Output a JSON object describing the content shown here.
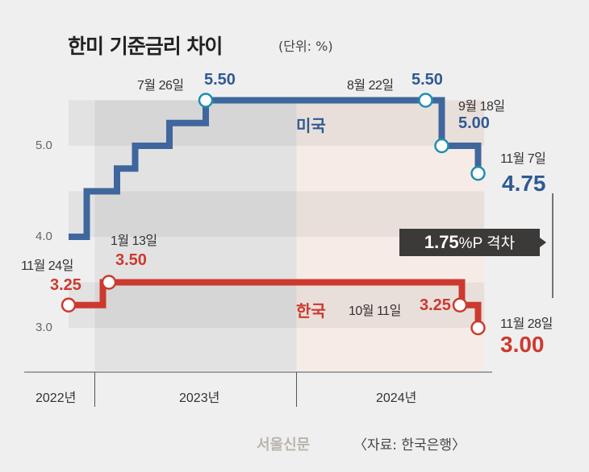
{
  "chart_data": {
    "type": "line",
    "title": "한미 기준금리 차이",
    "unit": "(단위: %)",
    "ylim": [
      3.0,
      5.5
    ],
    "yticks": [
      "5.0",
      "4.0",
      "3.0"
    ],
    "xlim": [
      2022.87,
      2024.93
    ],
    "years": [
      "2022년",
      "2023년",
      "2024년"
    ],
    "series": [
      {
        "name": "미국",
        "color": "#3f679d",
        "points": [
          [
            2022.87,
            4.0
          ],
          [
            2022.96,
            4.5
          ],
          [
            2023.11,
            4.75
          ],
          [
            2023.2,
            5.0
          ],
          [
            2023.37,
            5.25
          ],
          [
            2023.55,
            5.5
          ],
          [
            2024.72,
            5.0
          ],
          [
            2024.9,
            4.75
          ]
        ]
      },
      {
        "name": "한국",
        "color": "#cc3a2f",
        "points": [
          [
            2022.87,
            3.25
          ],
          [
            2023.04,
            3.5
          ],
          [
            2024.82,
            3.25
          ],
          [
            2024.9,
            3.0
          ]
        ]
      }
    ],
    "annotations": {
      "us_jul": {
        "date": "7월 26일",
        "value": "5.50"
      },
      "us_aug": {
        "date": "8월 22일",
        "value": "5.50"
      },
      "us_sep": {
        "date": "9월 18일",
        "value": "5.00"
      },
      "us_nov": {
        "date": "11월 7일",
        "value": "4.75"
      },
      "kr_nov22": {
        "date": "11월 24일",
        "value": "3.25"
      },
      "kr_jan": {
        "date": "1월 13일",
        "value": "3.50"
      },
      "kr_oct": {
        "date": "10월 11일",
        "value": "3.25"
      },
      "kr_nov": {
        "date": "11월 28일",
        "value": "3.00"
      }
    },
    "gap_label": {
      "num": "1.75",
      "rest": "%P 격차"
    }
  },
  "footer": {
    "logo": "서울신문",
    "source": "〈자료: 한국은행〉"
  }
}
